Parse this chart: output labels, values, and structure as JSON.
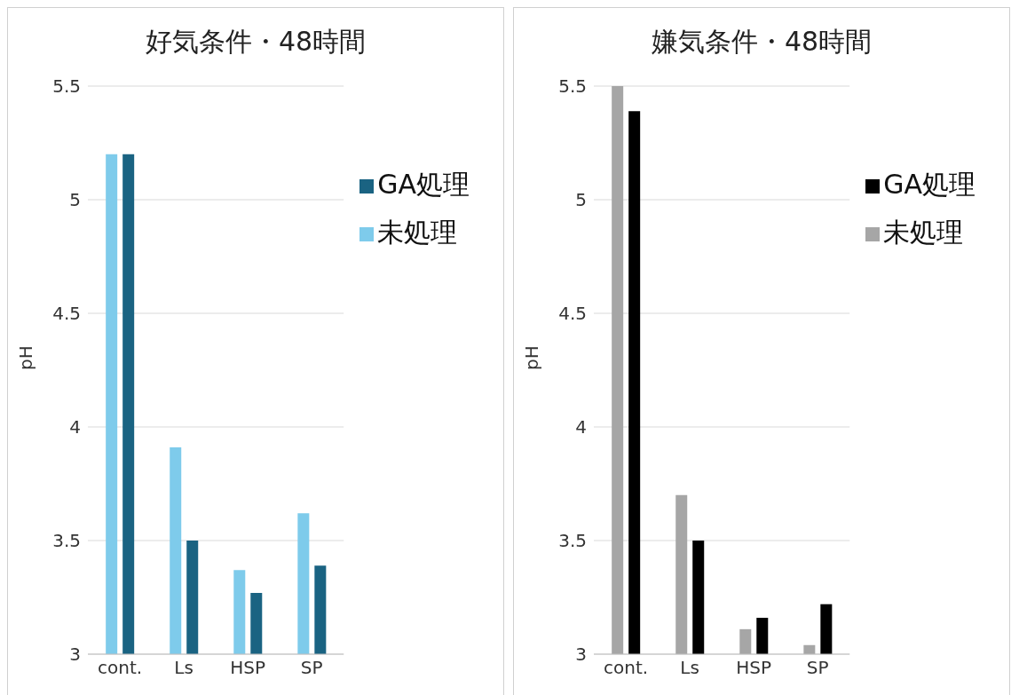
{
  "chart_data": [
    {
      "type": "bar",
      "title": "好気条件・48時間",
      "ylabel": "pH",
      "categories": [
        "cont.",
        "Ls",
        "HSP",
        "SP"
      ],
      "ylim": [
        3,
        5.5
      ],
      "yticks": [
        3,
        3.5,
        4,
        4.5,
        5,
        5.5
      ],
      "grid": "y",
      "legend": "top right",
      "series": [
        {
          "name": "未処理",
          "color": "#7ecbeb",
          "values": [
            5.2,
            3.91,
            3.37,
            3.62
          ]
        },
        {
          "name": "GA処理",
          "color": "#1a6382",
          "values": [
            5.2,
            3.5,
            3.27,
            3.39
          ]
        }
      ]
    },
    {
      "type": "bar",
      "title": "嫌気条件・48時間",
      "ylabel": "pH",
      "categories": [
        "cont.",
        "Ls",
        "HSP",
        "SP"
      ],
      "ylim": [
        3,
        5.5
      ],
      "yticks": [
        3,
        3.5,
        4,
        4.5,
        5,
        5.5
      ],
      "grid": "y",
      "legend": "top right",
      "series": [
        {
          "name": "未処理",
          "color": "#a6a6a6",
          "values": [
            5.5,
            3.7,
            3.11,
            3.04
          ]
        },
        {
          "name": "GA処理",
          "color": "#000000",
          "values": [
            5.39,
            3.5,
            3.16,
            3.22
          ]
        }
      ]
    }
  ]
}
